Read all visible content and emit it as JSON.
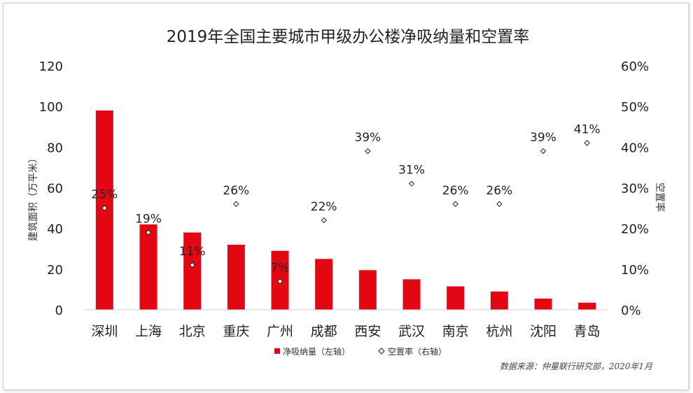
{
  "chart_data": {
    "type": "bar",
    "title": "2019年全国主要城市甲级办公楼净吸纳量和空置率",
    "ylabel": "建筑面积（万平米）",
    "y2label": "空置率",
    "ylim": [
      0,
      120
    ],
    "y2lim": [
      0,
      60
    ],
    "yticks": [
      "0",
      "20",
      "40",
      "60",
      "80",
      "100",
      "120"
    ],
    "y2ticks": [
      "0%",
      "10%",
      "20%",
      "30%",
      "40%",
      "50%",
      "60%"
    ],
    "categories": [
      "深圳",
      "上海",
      "北京",
      "重庆",
      "广州",
      "成都",
      "西安",
      "武汉",
      "南京",
      "杭州",
      "沈阳",
      "青岛"
    ],
    "series": [
      {
        "name": "净吸纳量（左轴）",
        "type": "bar",
        "axis": "left",
        "color": "#e30613",
        "values": [
          98,
          42,
          38,
          32,
          29,
          25,
          19.5,
          15,
          11.5,
          9,
          5.5,
          3.5
        ]
      },
      {
        "name": "空置率（右轴）",
        "type": "scatter",
        "axis": "right",
        "marker": "diamond",
        "values": [
          25,
          19,
          11,
          26,
          7,
          22,
          39,
          31,
          26,
          26,
          39,
          41
        ],
        "labels": [
          "25%",
          "19%",
          "11%",
          "26%",
          "7%",
          "22%",
          "39%",
          "31%",
          "26%",
          "26%",
          "39%",
          "41%"
        ]
      }
    ],
    "legend": "bottom",
    "grid": false
  },
  "source": "数据来源：仲量联行研究部，2020年1月"
}
